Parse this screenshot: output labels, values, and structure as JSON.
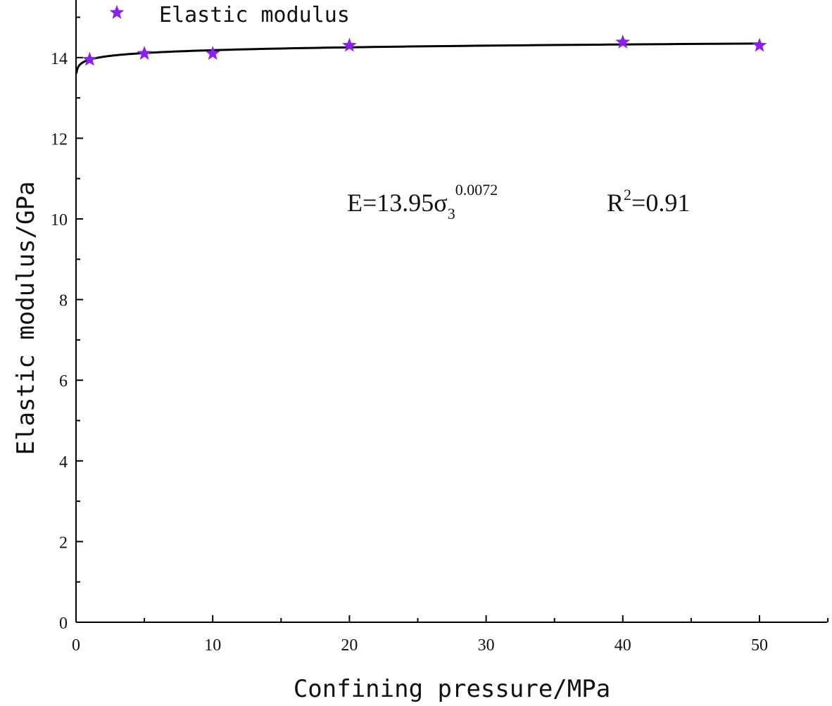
{
  "chart_data": {
    "type": "scatter",
    "title": "",
    "xlabel": "Confining pressure/MPa",
    "ylabel": "Elastic modulus/GPa",
    "xlim": [
      0,
      55
    ],
    "ylim": [
      0,
      15
    ],
    "x_ticks": [
      "0",
      "10",
      "20",
      "30",
      "40",
      "50"
    ],
    "y_ticks": [
      "0",
      "2",
      "4",
      "6",
      "8",
      "10",
      "12",
      "14"
    ],
    "legend_position": "top-left",
    "grid": false,
    "series": [
      {
        "name": "Elastic modulus",
        "marker": "star",
        "color": "#8a1ff0",
        "x": [
          1,
          5,
          10,
          20,
          40,
          50
        ],
        "y": [
          13.95,
          14.1,
          14.1,
          14.3,
          14.38,
          14.3
        ]
      }
    ],
    "fit": {
      "equation_main": "E=13.95σ",
      "equation_sub": "3",
      "equation_sup": "0.0072",
      "r2_main": "R",
      "r2_sup": "2",
      "r2_value": "=0.91",
      "a": 13.95,
      "b": 0.0072,
      "color": "#000000"
    }
  }
}
